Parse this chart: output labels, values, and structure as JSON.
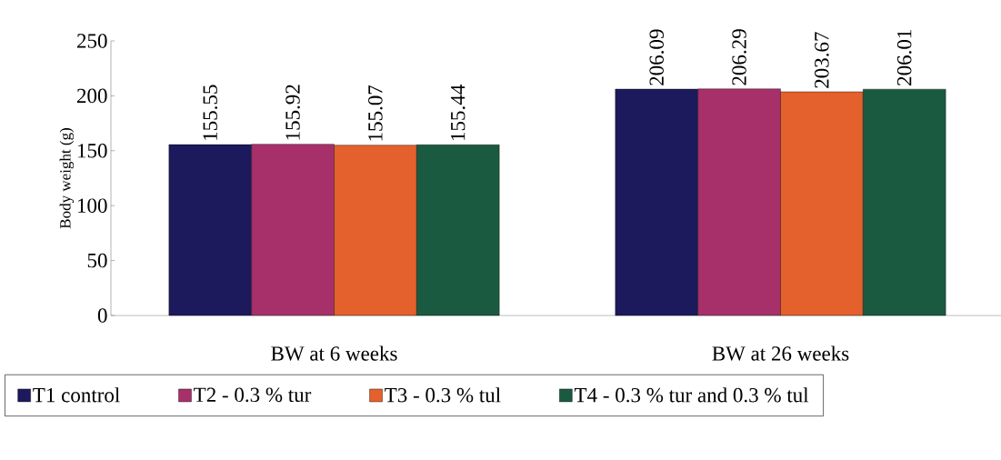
{
  "chart_data": {
    "type": "bar",
    "ylabel": "Body weight (g)",
    "categories": [
      "BW at 6 weeks",
      "BW at 26 weeks"
    ],
    "series": [
      {
        "name": "T1 control",
        "color": "#1c1a5c",
        "values": [
          155.55,
          206.09
        ]
      },
      {
        "name": "T2 - 0.3 % tur",
        "color": "#a8306a",
        "values": [
          155.92,
          206.29
        ]
      },
      {
        "name": "T3 - 0.3 % tul",
        "color": "#e4602c",
        "values": [
          155.07,
          203.67
        ]
      },
      {
        "name": "T4 - 0.3 % tur and 0.3 % tul",
        "color": "#1a5a40",
        "values": [
          155.44,
          206.01
        ]
      }
    ],
    "ylim": [
      0,
      250
    ],
    "yticks": [
      0,
      50,
      100,
      150,
      200,
      250
    ],
    "data_labels": true,
    "legend": "bottom",
    "grid": false
  }
}
